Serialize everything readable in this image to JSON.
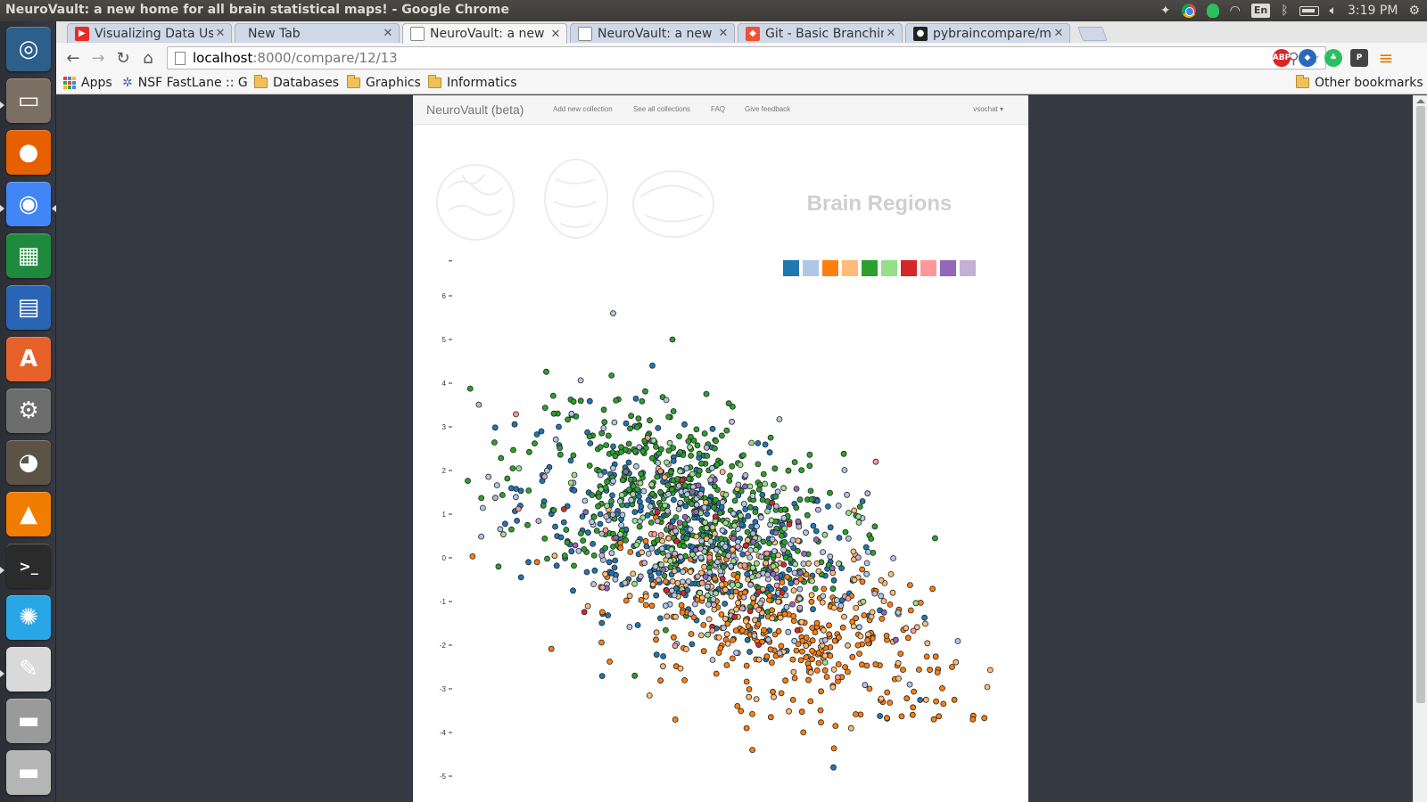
{
  "window": {
    "title": "NeuroVault: a new home for all brain statistical maps! - Google Chrome"
  },
  "tray": {
    "lang": "En",
    "clock": "3:19 PM"
  },
  "launcher": {
    "items": [
      {
        "name": "dash-icon",
        "color": "#2c5f8a",
        "glyph": "◎"
      },
      {
        "name": "file-manager-icon",
        "color": "#7b6f63",
        "glyph": "▭"
      },
      {
        "name": "firefox-icon",
        "color": "#e66000",
        "glyph": "●"
      },
      {
        "name": "chrome-icon",
        "color": "#4285f4",
        "glyph": "◉"
      },
      {
        "name": "spreadsheet-icon",
        "color": "#1e8a3e",
        "glyph": "▦"
      },
      {
        "name": "writer-icon",
        "color": "#2a64b4",
        "glyph": "▤"
      },
      {
        "name": "software-center-icon",
        "color": "#e7622a",
        "glyph": "A"
      },
      {
        "name": "system-settings-icon",
        "color": "#6d6d6d",
        "glyph": "⚙"
      },
      {
        "name": "gimp-icon",
        "color": "#5b5345",
        "glyph": "◕"
      },
      {
        "name": "vlc-icon",
        "color": "#f07c00",
        "glyph": "▲"
      },
      {
        "name": "terminal-icon",
        "color": "#2b2b2b",
        "glyph": ">_"
      },
      {
        "name": "app-splash-icon",
        "color": "#29a6e6",
        "glyph": "✺"
      },
      {
        "name": "text-editor-icon",
        "color": "#d9d9d9",
        "glyph": "✎"
      },
      {
        "name": "drive-icon",
        "color": "#9a9a9a",
        "glyph": "▬"
      },
      {
        "name": "optical-drive-icon",
        "color": "#b5b5b5",
        "glyph": "▬"
      }
    ]
  },
  "tabs": [
    {
      "label": "Visualizing Data Usi",
      "favicon": "youtube",
      "active": false
    },
    {
      "label": "New Tab",
      "favicon": "none",
      "active": false
    },
    {
      "label": "NeuroVault: a new h",
      "favicon": "page",
      "active": true
    },
    {
      "label": "NeuroVault: a new h",
      "favicon": "page",
      "active": false
    },
    {
      "label": "Git - Basic Branching",
      "favicon": "git",
      "active": false
    },
    {
      "label": "pybraincompare/ma",
      "favicon": "github",
      "active": false
    }
  ],
  "omnibox": {
    "host": "localhost",
    "path": ":8000/compare/12/13"
  },
  "bookmarks": {
    "apps": "Apps",
    "items": [
      "NSF FastLane :: G",
      "Databases",
      "Graphics",
      "Informatics"
    ],
    "other": "Other bookmarks"
  },
  "neurovault": {
    "brand": "NeuroVault (beta)",
    "nav": [
      "Add new collection",
      "See all collections",
      "FAQ",
      "Give feedback"
    ],
    "user": "vsochat ▾",
    "section_title": "Brain Regions"
  },
  "chart_data": {
    "type": "scatter",
    "title": "",
    "xlabel": "",
    "ylabel": "",
    "ylim": [
      -5,
      6.6
    ],
    "yticks": [
      "6",
      "5",
      "4",
      "3",
      "2",
      "1",
      "0",
      "-1",
      "-2",
      "-3",
      "-4",
      "-5"
    ],
    "grid": false,
    "legend_position": "top-right",
    "legend_colors": [
      "#1f77b4",
      "#aec7e8",
      "#ff7f0e",
      "#ffbb78",
      "#2ca02c",
      "#98df8a",
      "#d62728",
      "#ff9896",
      "#9467bd",
      "#c5b0d5"
    ],
    "series": [
      {
        "color": "#1f77b4",
        "center": [
          0.0,
          0.5
        ],
        "spread": [
          1.0,
          1.25
        ],
        "count": 380
      },
      {
        "color": "#2ca02c",
        "center": [
          -0.1,
          1.3
        ],
        "spread": [
          0.95,
          1.2
        ],
        "count": 420
      },
      {
        "color": "#ff7f0e",
        "center": [
          1.2,
          -1.8
        ],
        "spread": [
          1.0,
          1.0
        ],
        "count": 300
      },
      {
        "color": "#ffbb78",
        "center": [
          0.8,
          -0.9
        ],
        "spread": [
          1.0,
          1.1
        ],
        "count": 170
      },
      {
        "color": "#aec7e8",
        "center": [
          0.2,
          0.3
        ],
        "spread": [
          1.0,
          1.3
        ],
        "count": 170
      },
      {
        "color": "#98df8a",
        "center": [
          0.1,
          0.8
        ],
        "spread": [
          0.9,
          1.2
        ],
        "count": 80
      },
      {
        "color": "#9467bd",
        "center": [
          0.2,
          0.3
        ],
        "spread": [
          0.8,
          1.0
        ],
        "count": 30
      },
      {
        "color": "#c5b0d5",
        "center": [
          0.1,
          0.4
        ],
        "spread": [
          1.0,
          1.2
        ],
        "count": 40
      },
      {
        "color": "#d62728",
        "center": [
          0.4,
          -0.5
        ],
        "spread": [
          1.0,
          1.4
        ],
        "count": 20
      },
      {
        "color": "#ff9896",
        "center": [
          0.4,
          0.0
        ],
        "spread": [
          1.0,
          1.2
        ],
        "count": 20
      }
    ],
    "outliers": [
      {
        "x": -2.1,
        "y": 0.65,
        "color": "#2ca02c"
      },
      {
        "x": 3.1,
        "y": -2.5,
        "color": "#ff7f0e"
      },
      {
        "x": 2.6,
        "y": -2.9,
        "color": "#aec7e8"
      },
      {
        "x": 2.2,
        "y": 2.2,
        "color": "#ff9896"
      },
      {
        "x": -0.9,
        "y": 5.6,
        "color": "#aec7e8"
      },
      {
        "x": -0.2,
        "y": 5.0,
        "color": "#2ca02c"
      },
      {
        "x": 2.4,
        "y": -0.8,
        "color": "#ffbb78"
      },
      {
        "x": 1.7,
        "y": -4.8,
        "color": "#1f77b4"
      }
    ]
  }
}
